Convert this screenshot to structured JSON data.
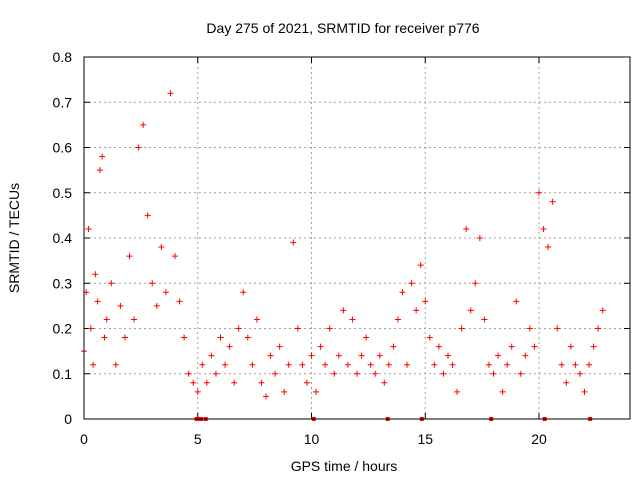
{
  "chart_data": {
    "type": "scatter",
    "title": "Day 275 of 2021, SRMTID for receiver p776",
    "xlabel": "GPS time / hours",
    "ylabel": "SRMTID / TECUs",
    "xlim": [
      0,
      24
    ],
    "ylim": [
      0,
      0.8
    ],
    "x_ticks": [
      0,
      5,
      10,
      15,
      20
    ],
    "x_tick_labels": [
      "0",
      "5",
      "10",
      "15",
      "20"
    ],
    "y_ticks": [
      0,
      0.1,
      0.2,
      0.3,
      0.4,
      0.5,
      0.6,
      0.7,
      0.8
    ],
    "y_tick_labels": [
      "0",
      "0.1",
      "0.2",
      "0.3",
      "0.4",
      "0.5",
      "0.6",
      "0.7",
      "0.8"
    ],
    "grid": true,
    "legend": "none",
    "marker": "+",
    "series_color": "#ff0000",
    "series": [
      {
        "name": "SRMTID",
        "x": [
          0.0,
          0.1,
          0.2,
          0.3,
          0.4,
          0.5,
          0.6,
          0.7,
          0.8,
          0.9,
          1.0,
          1.2,
          1.4,
          1.6,
          1.8,
          2.0,
          2.2,
          2.4,
          2.6,
          2.8,
          3.0,
          3.2,
          3.4,
          3.6,
          3.8,
          4.0,
          4.2,
          4.4,
          4.6,
          4.8,
          5.0,
          5.2,
          5.4,
          5.6,
          5.8,
          6.0,
          6.2,
          6.4,
          6.6,
          6.8,
          7.0,
          7.2,
          7.4,
          7.6,
          7.8,
          8.0,
          8.2,
          8.4,
          8.6,
          8.8,
          9.0,
          9.2,
          9.4,
          9.6,
          9.8,
          10.0,
          10.2,
          10.4,
          10.6,
          10.8,
          11.0,
          11.2,
          11.4,
          11.6,
          11.8,
          12.0,
          12.2,
          12.4,
          12.6,
          12.8,
          13.0,
          13.2,
          13.4,
          13.6,
          13.8,
          14.0,
          14.2,
          14.4,
          14.6,
          14.8,
          15.0,
          15.2,
          15.4,
          15.6,
          15.8,
          16.0,
          16.2,
          16.4,
          16.6,
          16.8,
          17.0,
          17.2,
          17.4,
          17.6,
          17.8,
          18.0,
          18.2,
          18.4,
          18.6,
          18.8,
          19.0,
          19.2,
          19.4,
          19.6,
          19.8,
          20.0,
          20.2,
          20.4,
          20.6,
          20.8,
          21.0,
          21.2,
          21.4,
          21.6,
          21.8,
          22.0,
          22.2,
          22.4,
          22.6,
          22.8
        ],
        "y": [
          0.15,
          0.28,
          0.42,
          0.2,
          0.12,
          0.32,
          0.26,
          0.55,
          0.58,
          0.18,
          0.22,
          0.3,
          0.12,
          0.25,
          0.18,
          0.36,
          0.22,
          0.6,
          0.65,
          0.45,
          0.3,
          0.25,
          0.38,
          0.28,
          0.72,
          0.36,
          0.26,
          0.18,
          0.1,
          0.08,
          0.06,
          0.12,
          0.08,
          0.14,
          0.1,
          0.18,
          0.12,
          0.16,
          0.08,
          0.2,
          0.28,
          0.18,
          0.12,
          0.22,
          0.08,
          0.05,
          0.14,
          0.1,
          0.16,
          0.06,
          0.12,
          0.39,
          0.2,
          0.12,
          0.08,
          0.14,
          0.06,
          0.16,
          0.12,
          0.2,
          0.1,
          0.14,
          0.24,
          0.12,
          0.22,
          0.1,
          0.14,
          0.18,
          0.12,
          0.1,
          0.14,
          0.08,
          0.12,
          0.16,
          0.22,
          0.28,
          0.12,
          0.3,
          0.24,
          0.34,
          0.26,
          0.18,
          0.12,
          0.16,
          0.1,
          0.14,
          0.12,
          0.06,
          0.2,
          0.42,
          0.24,
          0.3,
          0.4,
          0.22,
          0.12,
          0.1,
          0.14,
          0.06,
          0.12,
          0.16,
          0.26,
          0.1,
          0.14,
          0.2,
          0.16,
          0.5,
          0.42,
          0.38,
          0.48,
          0.2,
          0.12,
          0.08,
          0.16,
          0.12,
          0.1,
          0.06,
          0.12,
          0.16,
          0.2,
          0.24
        ]
      }
    ],
    "dropouts_x": [
      4.95,
      5.05,
      5.15,
      5.35,
      10.1,
      13.35,
      14.85,
      17.9,
      20.25,
      22.25
    ]
  }
}
